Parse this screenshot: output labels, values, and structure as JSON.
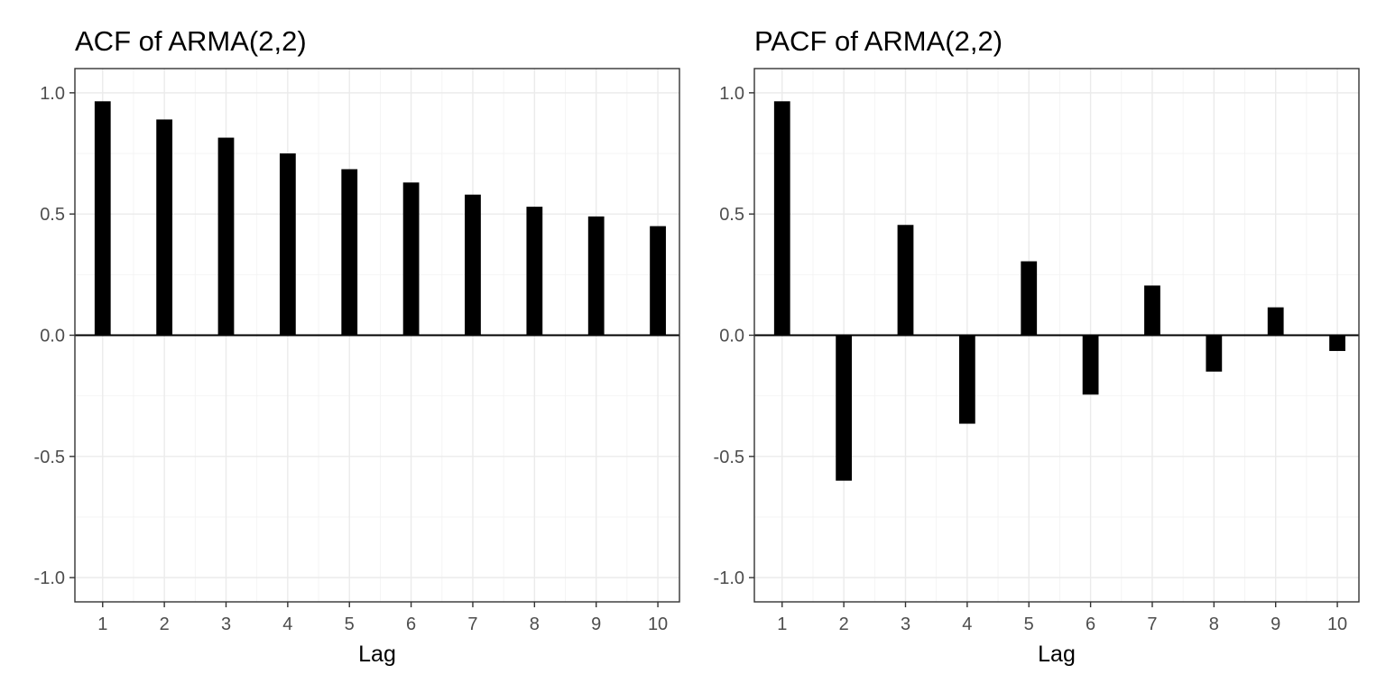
{
  "chart_data": [
    {
      "type": "bar",
      "title": "ACF of ARMA(2,2)",
      "xlabel": "Lag",
      "ylabel": "",
      "categories": [
        1,
        2,
        3,
        4,
        5,
        6,
        7,
        8,
        9,
        10
      ],
      "x_tick_labels": [
        "1",
        "2",
        "3",
        "4",
        "5",
        "6",
        "7",
        "8",
        "9",
        "10"
      ],
      "values": [
        0.965,
        0.89,
        0.815,
        0.75,
        0.685,
        0.63,
        0.58,
        0.53,
        0.49,
        0.45
      ],
      "ylim": [
        -1.1,
        1.1
      ],
      "y_ticks": [
        -1.0,
        -0.5,
        0.0,
        0.5,
        1.0
      ],
      "y_tick_labels": [
        "-1.0",
        "-0.5",
        "0.0",
        "0.5",
        "1.0"
      ],
      "grid": true,
      "bar_color": "#000000"
    },
    {
      "type": "bar",
      "title": "PACF of ARMA(2,2)",
      "xlabel": "Lag",
      "ylabel": "",
      "categories": [
        1,
        2,
        3,
        4,
        5,
        6,
        7,
        8,
        9,
        10
      ],
      "x_tick_labels": [
        "1",
        "2",
        "3",
        "4",
        "5",
        "6",
        "7",
        "8",
        "9",
        "10"
      ],
      "values": [
        0.965,
        -0.6,
        0.455,
        -0.365,
        0.305,
        -0.245,
        0.205,
        -0.15,
        0.115,
        -0.065
      ],
      "ylim": [
        -1.1,
        1.1
      ],
      "y_ticks": [
        -1.0,
        -0.5,
        0.0,
        0.5,
        1.0
      ],
      "y_tick_labels": [
        "-1.0",
        "-0.5",
        "0.0",
        "0.5",
        "1.0"
      ],
      "grid": true,
      "bar_color": "#000000"
    }
  ]
}
